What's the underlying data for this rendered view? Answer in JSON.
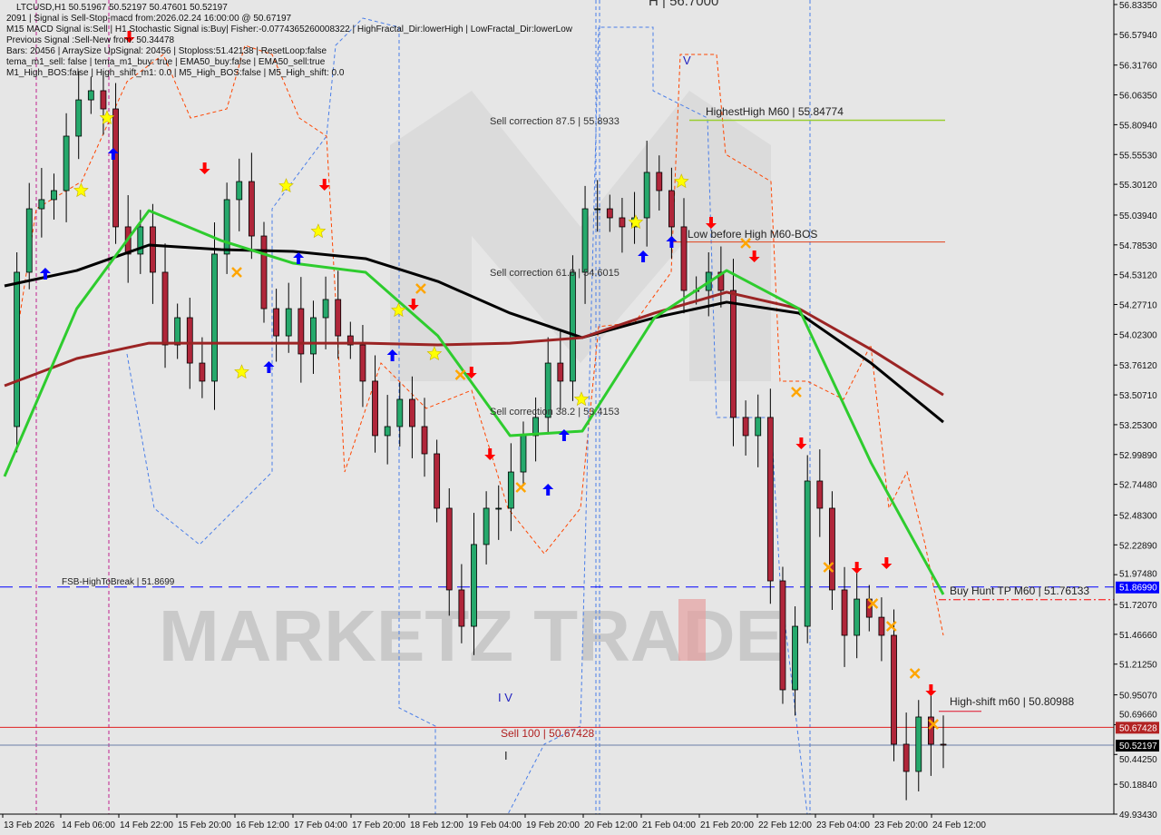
{
  "info": {
    "line1": "LTCUSD,H1  50.51967 50.52197 50.47601 50.52197",
    "line2": "2091 | Signal is Sell-Stop-macd from:2026.02.24 16:00:00 @ 50.67197",
    "line3": "M15 MACD Signal is:Sell | H1 Stochastic Signal is:Buy| Fisher:-0.0774365260008322 | HighFractal_Dir:lowerHigh | LowFractal_Dir:lowerLow",
    "line4": "Previous Signal :Sell-New from: 50.34478",
    "line5": "Bars: 20456 | ArraySize UpSignal: 20456 | Stoploss:51.42138 | ResetLoop:false",
    "line6": "tema_m1_sell: false | tema_m1_buy: true | EMA50_buy:false | EMA50_sell:true",
    "line7": "M1_High_BOS:false | High_shift_m1: 0.0 | M5_High_BOS:false | M5_High_shift: 0.0"
  },
  "watermark": "MARKETZ TRADE",
  "colors": {
    "bull": "#26a96c",
    "bear": "#b0263a",
    "ma_long": "#000000",
    "ma_mid": "#9b2424",
    "ma_fast": "#2ecc2e",
    "buy": "#0000ff",
    "sell": "#ff0000",
    "cross": "#ffa500",
    "star": "#ffff00",
    "bg": "#e6e6e6"
  },
  "chart_data": {
    "type": "candlestick",
    "symbol": "LTCUSD",
    "timeframe": "H1",
    "ylim": [
      49.9343,
      56.8335
    ],
    "y_ticks": [
      "56.83350",
      "56.57940",
      "56.31760",
      "56.06350",
      "55.80940",
      "55.55530",
      "55.30120",
      "55.03940",
      "54.78530",
      "54.53120",
      "54.27710",
      "54.02300",
      "53.76120",
      "53.50710",
      "53.25300",
      "52.99890",
      "52.74480",
      "52.48300",
      "52.22890",
      "51.97480",
      "51.72070",
      "51.46660",
      "51.21250",
      "50.95070",
      "50.69660",
      "50.44250",
      "50.18840",
      "49.93430"
    ],
    "x_ticks": [
      "13 Feb 2026",
      "14 Feb 06:00",
      "14 Feb 22:00",
      "15 Feb 20:00",
      "16 Feb 12:00",
      "17 Feb 04:00",
      "17 Feb 20:00",
      "18 Feb 12:00",
      "19 Feb 04:00",
      "19 Feb 20:00",
      "20 Feb 12:00",
      "21 Feb 04:00",
      "21 Feb 20:00",
      "22 Feb 12:00",
      "23 Feb 04:00",
      "23 Feb 20:00",
      "24 Feb 12:00"
    ],
    "closes": [
      53.237,
      54.552,
      55.093,
      55.171,
      55.248,
      55.712,
      56.021,
      56.099,
      55.944,
      54.939,
      54.707,
      54.939,
      54.552,
      53.933,
      54.165,
      53.778,
      53.624,
      54.707,
      55.171,
      55.325,
      54.861,
      54.242,
      54.01,
      54.242,
      53.856,
      54.165,
      54.32,
      54.01,
      53.933,
      53.624,
      53.16,
      53.237,
      53.469,
      53.237,
      53.005,
      52.541,
      51.845,
      51.535,
      52.232,
      52.541,
      52.541,
      52.85,
      53.16,
      53.315,
      53.778,
      53.624,
      54.552,
      55.093,
      55.093,
      55.016,
      54.939,
      55.016,
      55.403,
      55.248,
      54.939,
      54.397,
      54.397,
      54.552,
      54.397,
      53.315,
      53.16,
      53.315,
      51.922,
      50.994,
      51.535,
      52.773,
      52.541,
      51.845,
      51.458,
      51.767,
      51.612,
      51.458,
      50.53,
      50.298,
      50.762,
      50.53,
      50.522
    ],
    "series": [
      {
        "values": [
          54.436,
          54.567,
          54.784,
          54.745,
          54.73,
          54.668,
          54.474,
          54.204,
          53.995,
          54.165,
          54.297,
          54.204,
          53.778,
          53.275
        ],
        "color": "#000000"
      },
      {
        "values": [
          53.585,
          53.817,
          53.948,
          53.948,
          53.948,
          53.948,
          53.933,
          53.948,
          53.995,
          54.204,
          54.382,
          54.242,
          53.894,
          53.507
        ],
        "color": "#9b2424"
      },
      {
        "values": [
          52.812,
          54.242,
          55.078,
          54.822,
          54.629,
          54.552,
          54.01,
          53.16,
          53.198,
          54.165,
          54.567,
          54.242,
          52.928,
          51.806
        ],
        "color": "#2ecc2e"
      }
    ],
    "levels": [
      {
        "label": "FSB-HighToBreak | 51.8699",
        "price": 51.8699,
        "tag": "51.86990",
        "color": "#0000ff"
      },
      {
        "label": "Sell 100 | 50.67428",
        "price": 50.67428,
        "tag": "50.67428",
        "color": "#e02020"
      },
      {
        "label": "",
        "price": 50.52197,
        "tag": "50.52197",
        "color": "#6a7fa8"
      },
      {
        "label": "HighestHigh    M60 | 55.84774",
        "price": 55.84774,
        "color": "#9acd32"
      },
      {
        "label": "Low before High    M60-BOS",
        "price": 54.81,
        "color": "#e0401a"
      },
      {
        "label": "Buy Hunt TP M60 | 51.76133",
        "price": 51.76133,
        "color": "#ff0000"
      },
      {
        "label": "High-shift m60 | 50.80988",
        "price": 50.80988,
        "color": "#e0102a"
      }
    ],
    "annotations": {
      "sell_875": "Sell correction 87.5 | 55.8933",
      "sell_618": "Sell correction 61.8 | 54.6015",
      "sell_382": "Sell correction 38.2 | 53.4153",
      "top_clip": "H | 56.7000",
      "iv": "I V",
      "v": "V",
      "bar": "I"
    },
    "signals": {
      "stars": [
        [
          8.3,
          55.867
        ],
        [
          6.2,
          55.248
        ],
        [
          22.8,
          55.287
        ],
        [
          25.4,
          54.9
        ],
        [
          31.9,
          54.227
        ],
        [
          19.2,
          53.701
        ],
        [
          34.8,
          53.856
        ],
        [
          46.7,
          53.469
        ],
        [
          51.1,
          54.977
        ],
        [
          54.8,
          55.325
        ]
      ],
      "buy_arrows": [
        [
          3.3,
          54.536
        ],
        [
          8.8,
          55.557
        ],
        [
          21.4,
          53.74
        ],
        [
          23.8,
          54.668
        ],
        [
          31.4,
          53.84
        ],
        [
          45.3,
          53.16
        ],
        [
          44,
          52.696
        ],
        [
          51.7,
          54.683
        ],
        [
          54,
          54.807
        ]
      ],
      "sell_arrows": [
        [
          10.1,
          56.563
        ],
        [
          16.2,
          55.441
        ],
        [
          25.9,
          55.302
        ],
        [
          33.1,
          54.281
        ],
        [
          37.8,
          53.701
        ],
        [
          39.3,
          53.005
        ],
        [
          57.2,
          54.977
        ],
        [
          60.7,
          54.691
        ],
        [
          64.5,
          53.098
        ],
        [
          69,
          52.038
        ],
        [
          71.4,
          52.077
        ],
        [
          75,
          50.994
        ]
      ],
      "crosses": [
        [
          18.8,
          54.552
        ],
        [
          33.7,
          54.413
        ],
        [
          36.9,
          53.678
        ],
        [
          41.8,
          52.719
        ],
        [
          60,
          54.799
        ],
        [
          64.1,
          53.531
        ],
        [
          66.7,
          52.038
        ],
        [
          70.3,
          51.729
        ],
        [
          71.8,
          51.535
        ],
        [
          73.7,
          51.133
        ],
        [
          75.2,
          50.7
        ]
      ]
    }
  }
}
